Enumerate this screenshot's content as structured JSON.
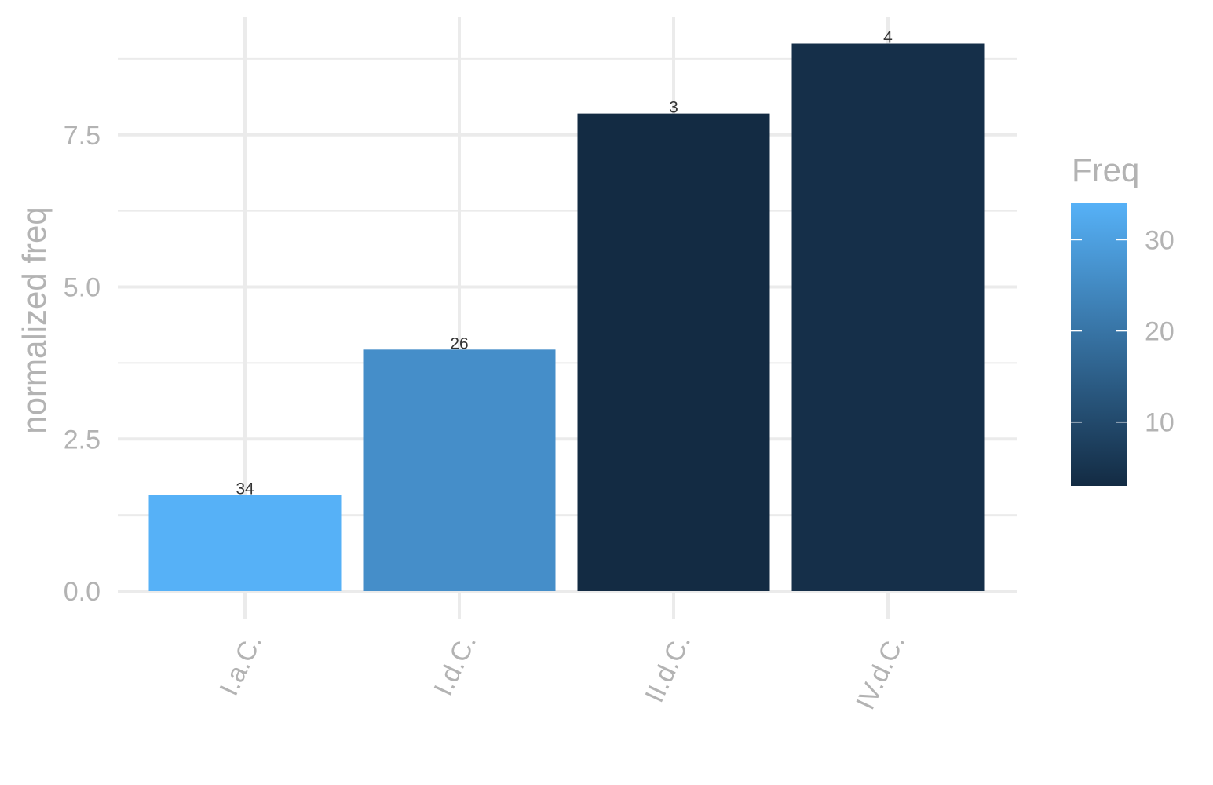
{
  "chart_data": {
    "type": "bar",
    "categories": [
      "I.a.C.",
      "I.d.C.",
      "II.d.C.",
      "IV.d.C."
    ],
    "values": [
      1.58,
      3.97,
      7.85,
      9.0
    ],
    "freq": [
      34,
      26,
      3,
      4
    ],
    "data_labels": [
      "34",
      "26",
      "3",
      "4"
    ],
    "xlabel": "",
    "ylabel": "normalized freq",
    "ylim": [
      0,
      9.5
    ],
    "yticks": [
      0,
      2.5,
      5.0,
      7.5
    ],
    "ytick_labels": [
      "0.0",
      "2.5",
      "5.0",
      "7.5"
    ],
    "grid": true,
    "legend": {
      "title": "Freq",
      "placement": "right",
      "range": [
        3,
        34
      ],
      "ticks": [
        10,
        20,
        30
      ],
      "tick_labels": [
        "10",
        "20",
        "30"
      ],
      "color_low": "#132B43",
      "color_high": "#56B1F7"
    }
  }
}
